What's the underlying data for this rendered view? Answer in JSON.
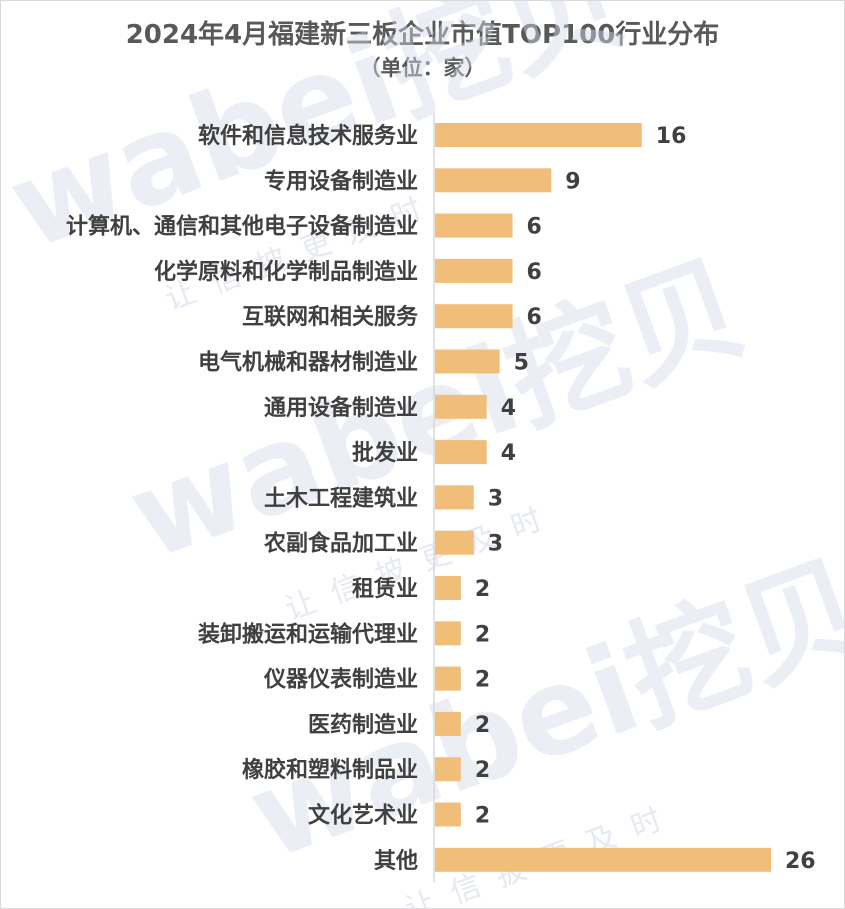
{
  "chart_data": {
    "type": "bar",
    "orientation": "horizontal",
    "title": "2024年4月福建新三板企业市值TOP100行业分布",
    "subtitle": "（单位：家）",
    "categories": [
      "软件和信息技术服务业",
      "专用设备制造业",
      "计算机、通信和其他电子设备制造业",
      "化学原料和化学制品制造业",
      "互联网和相关服务",
      "电气机械和器材制造业",
      "通用设备制造业",
      "批发业",
      "土木工程建筑业",
      "农副食品加工业",
      "租赁业",
      "装卸搬运和运输代理业",
      "仪器仪表制造业",
      "医药制造业",
      "橡胶和塑料制品业",
      "文化艺术业",
      "其他"
    ],
    "values": [
      16,
      9,
      6,
      6,
      6,
      5,
      4,
      4,
      3,
      3,
      2,
      2,
      2,
      2,
      2,
      2,
      26
    ],
    "xlim": [
      0,
      26
    ],
    "grid": false,
    "bar_color": "#F0BE78",
    "axis_color": "#d9d9d9"
  },
  "watermark": {
    "text": "wabei挖贝",
    "sub": "让信披更及时"
  }
}
